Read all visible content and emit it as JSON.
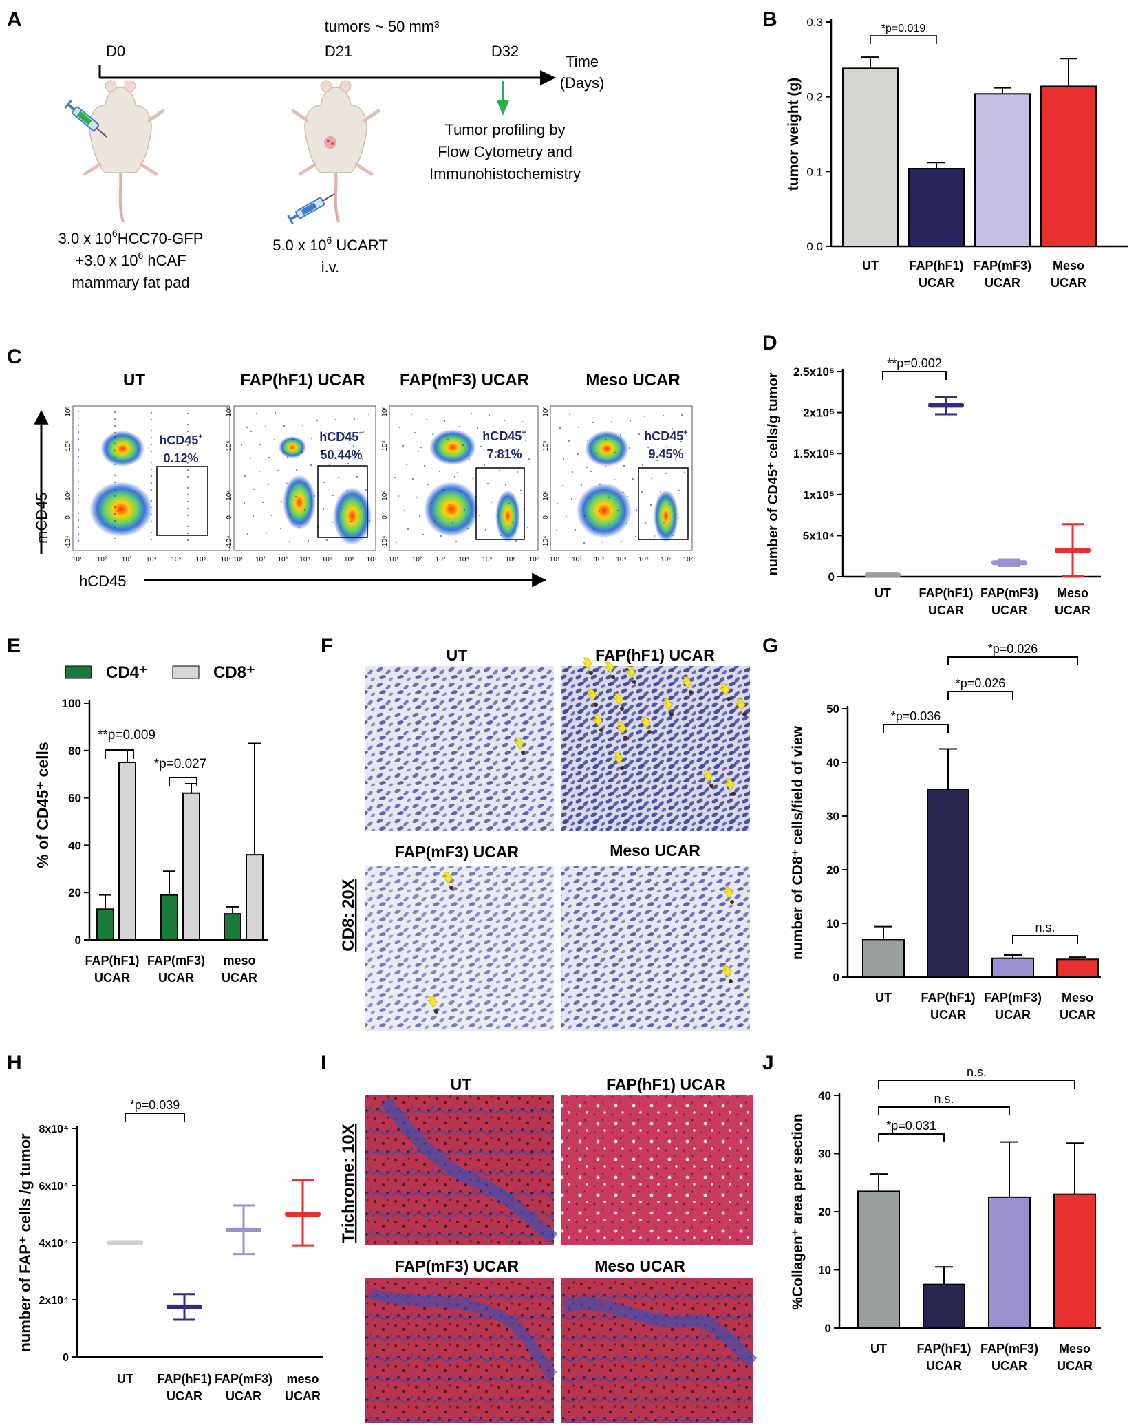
{
  "panel_labels": {
    "A": "A",
    "B": "B",
    "C": "C",
    "D": "D",
    "E": "E",
    "F": "F",
    "G": "G",
    "H": "H",
    "I": "I",
    "J": "J"
  },
  "panel_a": {
    "days": [
      "D0",
      "D21",
      "D32"
    ],
    "tumor_note": "tumors ~ 50 mm³",
    "time_label": "Time",
    "time_unit": "(Days)",
    "profiling": [
      "Tumor profiling by",
      "Flow Cytometry and",
      "Immunohistochemistry"
    ],
    "injection1": {
      "line1_a": "3.0 x 10",
      "line1_sup": "6",
      "line1_b": "HCC70-GFP",
      "line2_a": "+3.0 x 10",
      "line2_sup": "6",
      "line2_b": " hCAF",
      "line3": "mammary fat pad"
    },
    "injection2": {
      "line1_a": "5.0 x 10",
      "line1_sup": "6",
      "line1_b": " UCART",
      "line2": "i.v."
    },
    "colors": {
      "arrow": "#2db04b",
      "mouse": "#e8e0d8",
      "tail": "#e7a9a9",
      "syringe": "#3b7dc4"
    }
  },
  "panel_c": {
    "titles": [
      "UT",
      "FAP(hF1) UCAR",
      "FAP(mF3) UCAR",
      "Meso UCAR"
    ],
    "gate_label": "hCD45",
    "gate_sup": "+",
    "gate_values": [
      "0.12%",
      "50.44%",
      "7.81%",
      "9.45%"
    ],
    "y_axis": "mCD45",
    "x_axis": "hCD45",
    "x_ticks": [
      "10¹",
      "10²",
      "10³",
      "10⁴",
      "10⁵",
      "10⁶",
      "10⁷"
    ],
    "y_ticks": [
      "10⁶",
      "10⁵",
      "10⁴",
      "0",
      "-10⁴"
    ]
  },
  "panel_f": {
    "titles": [
      "UT",
      "FAP(hF1) UCAR",
      "FAP(mF3) UCAR",
      "Meso UCAR"
    ],
    "side_label": "CD8: 20X"
  },
  "panel_i": {
    "titles": [
      "UT",
      "FAP(hF1) UCAR",
      "FAP(mF3) UCAR",
      "Meso UCAR"
    ],
    "side_label": "Trichrome: 10X"
  },
  "chart_data": [
    {
      "panel": "B",
      "type": "bar",
      "categories": [
        [
          "UT"
        ],
        [
          "FAP(hF1)",
          "UCAR"
        ],
        [
          "FAP(mF3)",
          "UCAR"
        ],
        [
          "Meso",
          "UCAR"
        ]
      ],
      "values": [
        0.238,
        0.104,
        0.204,
        0.214
      ],
      "errors": [
        0.015,
        0.008,
        0.008,
        0.037
      ],
      "colors": [
        "#d6d4d0",
        "#27245e",
        "#c7c0e3",
        "#e8302e"
      ],
      "ylabel": "tumor weight (g)",
      "ylim": [
        0,
        0.3
      ],
      "yticks": [
        "0.0",
        "0.1",
        "0.2",
        "0.3"
      ],
      "annotations": [
        {
          "text": "*p=0.019",
          "from": 0,
          "to": 1
        }
      ]
    },
    {
      "panel": "D",
      "type": "scatter",
      "categories": [
        [
          "UT"
        ],
        [
          "FAP(hF1)",
          "UCAR"
        ],
        [
          "FAP(mF3)",
          "UCAR"
        ],
        [
          "Meso",
          "UCAR"
        ]
      ],
      "values": [
        2000,
        209000,
        17000,
        32000
      ],
      "low": [
        1000,
        198000,
        13000,
        1000
      ],
      "high": [
        3000,
        219000,
        21000,
        64000
      ],
      "colors": [
        "#9c9c9c",
        "#2e2c85",
        "#9d8fd0",
        "#e8302e"
      ],
      "ylabel": "number of CD45⁺ cells/g tumor",
      "ylim": [
        0,
        250000
      ],
      "yticks": [
        "0",
        "5x10⁴",
        "1x10⁵",
        "1.5x10⁵",
        "2x10⁵",
        "2.5x10⁵"
      ],
      "annotations": [
        {
          "text": "**p=0.002",
          "from": 0,
          "to": 1
        }
      ]
    },
    {
      "panel": "E",
      "type": "bar",
      "categories": [
        [
          "FAP(hF1)",
          "UCAR"
        ],
        [
          "FAP(mF3)",
          "UCAR"
        ],
        [
          "meso",
          "UCAR"
        ]
      ],
      "series": [
        {
          "name": "CD4⁺",
          "values": [
            13,
            19,
            11
          ],
          "errors": [
            6,
            10,
            3
          ],
          "color": "#1a7a3a"
        },
        {
          "name": "CD8⁺",
          "values": [
            75,
            62,
            36
          ],
          "errors": [
            5,
            4,
            47
          ],
          "color": "#d6d6d4"
        }
      ],
      "ylabel": "% of CD45⁺ cells",
      "ylim": [
        0,
        100
      ],
      "yticks": [
        "0",
        "20",
        "40",
        "60",
        "80",
        "100"
      ],
      "legend": "top",
      "annotations": [
        {
          "text": "**p=0.009",
          "group": 0
        },
        {
          "text": "*p=0.027",
          "group": 1
        }
      ]
    },
    {
      "panel": "G",
      "type": "bar",
      "categories": [
        [
          "UT"
        ],
        [
          "FAP(hF1)",
          "UCAR"
        ],
        [
          "FAP(mF3)",
          "UCAR"
        ],
        [
          "Meso",
          "UCAR"
        ]
      ],
      "values": [
        7,
        35,
        3.5,
        3.3
      ],
      "errors": [
        2.4,
        7.5,
        0.6,
        0.4
      ],
      "colors": [
        "#9aa0a0",
        "#27244f",
        "#9b90cf",
        "#e8302e"
      ],
      "ylabel": "number of CD8⁺ cells/field of view",
      "ylim": [
        0,
        50
      ],
      "yticks": [
        "0",
        "10",
        "20",
        "30",
        "40",
        "50"
      ],
      "annotations": [
        {
          "text": "*p=0.036",
          "from": 0,
          "to": 1
        },
        {
          "text": "*p=0.026",
          "from": 1,
          "to": 2
        },
        {
          "text": "*p=0.026",
          "from": 1,
          "to": 3
        },
        {
          "text": "n.s.",
          "from": 2,
          "to": 3
        }
      ]
    },
    {
      "panel": "H",
      "type": "scatter",
      "categories": [
        [
          "UT"
        ],
        [
          "FAP(hF1)",
          "UCAR"
        ],
        [
          "FAP(mF3)",
          "UCAR"
        ],
        [
          "meso",
          "UCAR"
        ]
      ],
      "values": [
        40000,
        17500,
        44500,
        50000
      ],
      "low": [
        40000,
        13000,
        36000,
        39000
      ],
      "high": [
        40000,
        22000,
        53000,
        62000
      ],
      "colors": [
        "#cfcfcf",
        "#2e2c85",
        "#9d8fd0",
        "#e8302e"
      ],
      "ylabel": "number of FAP⁺ cells /g tumor",
      "ylim": [
        0,
        80000
      ],
      "yticks": [
        "0",
        "2x10⁴",
        "4x10⁴",
        "6x10⁴",
        "8x10⁴"
      ],
      "annotations": [
        {
          "text": "*p=0.039",
          "from": 0,
          "to": 1
        }
      ]
    },
    {
      "panel": "J",
      "type": "bar",
      "categories": [
        [
          "UT"
        ],
        [
          "FAP(hF1)",
          "UCAR"
        ],
        [
          "FAP(mF3)",
          "UCAR"
        ],
        [
          "Meso",
          "UCAR"
        ]
      ],
      "values": [
        23.5,
        7.5,
        22.5,
        23
      ],
      "errors": [
        3,
        3,
        9.5,
        8.8
      ],
      "colors": [
        "#9aa0a0",
        "#27244f",
        "#9b90cf",
        "#e8302e"
      ],
      "ylabel": "%Collagen⁺ area per section",
      "ylim": [
        0,
        40
      ],
      "yticks": [
        "0",
        "10",
        "20",
        "30",
        "40"
      ],
      "annotations": [
        {
          "text": "*p=0.031",
          "from": 0,
          "to": 1
        },
        {
          "text": "n.s.",
          "from": 0,
          "to": 2
        },
        {
          "text": "n.s.",
          "from": 0,
          "to": 3
        }
      ]
    }
  ]
}
